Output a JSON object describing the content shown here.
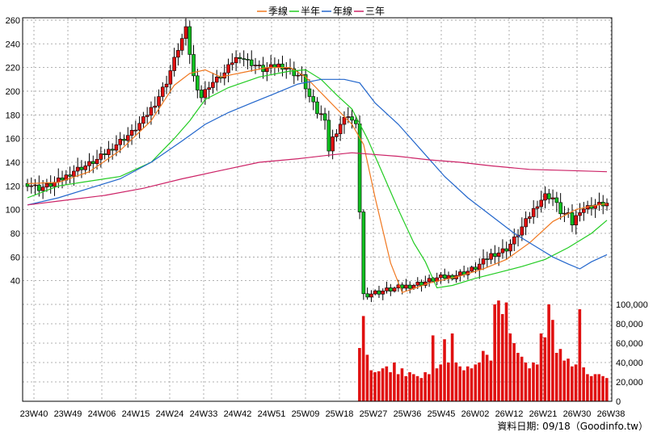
{
  "chart_data": {
    "type": "candlestick",
    "price_axis": {
      "ticks": [
        40,
        60,
        80,
        100,
        120,
        140,
        160,
        180,
        200,
        220,
        240,
        260
      ],
      "range": [
        20,
        262
      ]
    },
    "volume_axis": {
      "ticks": [
        0,
        20000,
        40000,
        60000,
        80000,
        100000
      ],
      "tick_labels": [
        "0",
        "20,000",
        "40,000",
        "60,000",
        "80,000",
        "100,000"
      ],
      "range": [
        0,
        100000
      ]
    },
    "x_tick_labels": [
      "23W40",
      "23W49",
      "24W06",
      "24W15",
      "24W24",
      "24W33",
      "24W42",
      "24W51",
      "25W09",
      "25W18",
      "25W27",
      "25W36",
      "25W45",
      "26W02",
      "26W12",
      "26W21",
      "26W30",
      "26W38"
    ],
    "legend": [
      {
        "label": "季線",
        "color": "#f07820"
      },
      {
        "label": "半年",
        "color": "#22cc22"
      },
      {
        "label": "年線",
        "color": "#2266cc"
      },
      {
        "label": "三年",
        "color": "#cc2266"
      }
    ],
    "colors": {
      "up": "#e01010",
      "down": "#10c020",
      "volume": "#e01010",
      "grid": "#999999"
    },
    "price_anchors": [
      [
        0,
        122
      ],
      [
        3,
        118
      ],
      [
        6,
        121
      ],
      [
        9,
        126
      ],
      [
        12,
        133
      ],
      [
        15,
        137
      ],
      [
        18,
        142
      ],
      [
        21,
        150
      ],
      [
        24,
        158
      ],
      [
        27,
        165
      ],
      [
        30,
        176
      ],
      [
        33,
        190
      ],
      [
        36,
        208
      ],
      [
        39,
        236
      ],
      [
        41,
        252
      ],
      [
        43,
        212
      ],
      [
        45,
        195
      ],
      [
        47,
        205
      ],
      [
        49,
        210
      ],
      [
        51,
        215
      ],
      [
        53,
        225
      ],
      [
        55,
        230
      ],
      [
        57,
        225
      ],
      [
        59,
        222
      ],
      [
        61,
        218
      ],
      [
        63,
        220
      ],
      [
        65,
        222
      ],
      [
        67,
        220
      ],
      [
        69,
        215
      ],
      [
        71,
        212
      ],
      [
        73,
        195
      ],
      [
        75,
        182
      ],
      [
        77,
        178
      ],
      [
        78,
        150
      ],
      [
        79,
        160
      ],
      [
        81,
        172
      ],
      [
        83,
        180
      ],
      [
        85,
        170
      ],
      [
        87,
        28
      ],
      [
        90,
        30
      ],
      [
        93,
        32
      ],
      [
        96,
        34
      ],
      [
        99,
        36
      ],
      [
        102,
        38
      ],
      [
        104,
        40
      ],
      [
        106,
        42
      ],
      [
        108,
        43
      ],
      [
        110,
        44
      ],
      [
        112,
        46
      ],
      [
        114,
        48
      ],
      [
        116,
        51
      ],
      [
        118,
        56
      ],
      [
        120,
        62
      ],
      [
        122,
        64
      ],
      [
        124,
        67
      ],
      [
        126,
        75
      ],
      [
        128,
        85
      ],
      [
        130,
        95
      ],
      [
        132,
        105
      ],
      [
        134,
        112
      ],
      [
        136,
        110
      ],
      [
        138,
        98
      ],
      [
        140,
        95
      ],
      [
        141,
        88
      ],
      [
        143,
        100
      ],
      [
        145,
        102
      ],
      [
        147,
        104
      ],
      [
        150,
        105
      ]
    ],
    "volume_anchors": [
      [
        0,
        400
      ],
      [
        85,
        400
      ],
      [
        86,
        55000
      ],
      [
        87,
        88000
      ],
      [
        88,
        48000
      ],
      [
        89,
        32000
      ],
      [
        90,
        30000
      ],
      [
        91,
        31000
      ],
      [
        92,
        34000
      ],
      [
        93,
        36000
      ],
      [
        94,
        30000
      ],
      [
        95,
        40000
      ],
      [
        96,
        28000
      ],
      [
        97,
        34000
      ],
      [
        98,
        26000
      ],
      [
        99,
        30000
      ],
      [
        100,
        28000
      ],
      [
        101,
        26000
      ],
      [
        102,
        24000
      ],
      [
        103,
        30000
      ],
      [
        104,
        28000
      ],
      [
        105,
        68000
      ],
      [
        106,
        34000
      ],
      [
        107,
        38000
      ],
      [
        108,
        64000
      ],
      [
        109,
        40000
      ],
      [
        110,
        70000
      ],
      [
        111,
        40000
      ],
      [
        112,
        36000
      ],
      [
        113,
        32000
      ],
      [
        114,
        36000
      ],
      [
        115,
        34000
      ],
      [
        116,
        38000
      ],
      [
        117,
        40000
      ],
      [
        118,
        52000
      ],
      [
        119,
        48000
      ],
      [
        120,
        42000
      ],
      [
        121,
        100000
      ],
      [
        122,
        104000
      ],
      [
        123,
        90000
      ],
      [
        124,
        102000
      ],
      [
        125,
        70000
      ],
      [
        126,
        60000
      ],
      [
        127,
        50000
      ],
      [
        128,
        46000
      ],
      [
        129,
        40000
      ],
      [
        130,
        34000
      ],
      [
        131,
        40000
      ],
      [
        132,
        38000
      ],
      [
        133,
        70000
      ],
      [
        134,
        66000
      ],
      [
        135,
        100000
      ],
      [
        136,
        84000
      ],
      [
        137,
        50000
      ],
      [
        138,
        54000
      ],
      [
        139,
        42000
      ],
      [
        140,
        44000
      ],
      [
        141,
        36000
      ],
      [
        142,
        38000
      ],
      [
        143,
        95000
      ],
      [
        144,
        35000
      ],
      [
        145,
        28000
      ],
      [
        146,
        26000
      ],
      [
        147,
        28000
      ],
      [
        148,
        28000
      ],
      [
        149,
        26000
      ],
      [
        150,
        24000
      ]
    ],
    "ma_quarter": [
      [
        0,
        122
      ],
      [
        8,
        123
      ],
      [
        16,
        132
      ],
      [
        24,
        150
      ],
      [
        32,
        175
      ],
      [
        38,
        205
      ],
      [
        42,
        215
      ],
      [
        46,
        218
      ],
      [
        50,
        212
      ],
      [
        56,
        216
      ],
      [
        62,
        220
      ],
      [
        68,
        220
      ],
      [
        72,
        212
      ],
      [
        78,
        192
      ],
      [
        84,
        172
      ],
      [
        87,
        155
      ],
      [
        90,
        110
      ],
      [
        94,
        55
      ],
      [
        97,
        30
      ],
      [
        104,
        38
      ],
      [
        112,
        44
      ],
      [
        118,
        50
      ],
      [
        124,
        58
      ],
      [
        130,
        72
      ],
      [
        136,
        90
      ],
      [
        142,
        100
      ],
      [
        146,
        103
      ],
      [
        150,
        105
      ]
    ],
    "ma_half": [
      [
        0,
        110
      ],
      [
        8,
        120
      ],
      [
        16,
        124
      ],
      [
        24,
        128
      ],
      [
        32,
        140
      ],
      [
        38,
        160
      ],
      [
        42,
        175
      ],
      [
        46,
        193
      ],
      [
        52,
        203
      ],
      [
        60,
        212
      ],
      [
        68,
        217
      ],
      [
        72,
        218
      ],
      [
        76,
        210
      ],
      [
        80,
        197
      ],
      [
        84,
        185
      ],
      [
        88,
        160
      ],
      [
        92,
        130
      ],
      [
        96,
        100
      ],
      [
        100,
        72
      ],
      [
        103,
        56
      ],
      [
        106,
        34
      ],
      [
        110,
        36
      ],
      [
        116,
        42
      ],
      [
        122,
        47
      ],
      [
        128,
        52
      ],
      [
        134,
        58
      ],
      [
        140,
        68
      ],
      [
        146,
        80
      ],
      [
        150,
        91
      ]
    ],
    "ma_year": [
      [
        0,
        104
      ],
      [
        8,
        110
      ],
      [
        16,
        118
      ],
      [
        24,
        126
      ],
      [
        32,
        140
      ],
      [
        40,
        158
      ],
      [
        46,
        172
      ],
      [
        52,
        182
      ],
      [
        58,
        190
      ],
      [
        64,
        198
      ],
      [
        70,
        206
      ],
      [
        76,
        210
      ],
      [
        82,
        210
      ],
      [
        86,
        207
      ],
      [
        90,
        190
      ],
      [
        96,
        172
      ],
      [
        102,
        150
      ],
      [
        108,
        128
      ],
      [
        114,
        110
      ],
      [
        120,
        95
      ],
      [
        126,
        80
      ],
      [
        132,
        68
      ],
      [
        136,
        60
      ],
      [
        140,
        54
      ],
      [
        143,
        50
      ],
      [
        146,
        56
      ],
      [
        150,
        62
      ]
    ],
    "ma_3year": [
      [
        0,
        104
      ],
      [
        10,
        108
      ],
      [
        20,
        112
      ],
      [
        30,
        118
      ],
      [
        40,
        126
      ],
      [
        50,
        133
      ],
      [
        60,
        140
      ],
      [
        70,
        143
      ],
      [
        78,
        146
      ],
      [
        84,
        148
      ],
      [
        88,
        147
      ],
      [
        96,
        145
      ],
      [
        104,
        142
      ],
      [
        112,
        140
      ],
      [
        120,
        137
      ],
      [
        130,
        134
      ],
      [
        140,
        133
      ],
      [
        150,
        132
      ]
    ]
  },
  "credit": "資料日期: 09/18（Goodinfo.tw）"
}
